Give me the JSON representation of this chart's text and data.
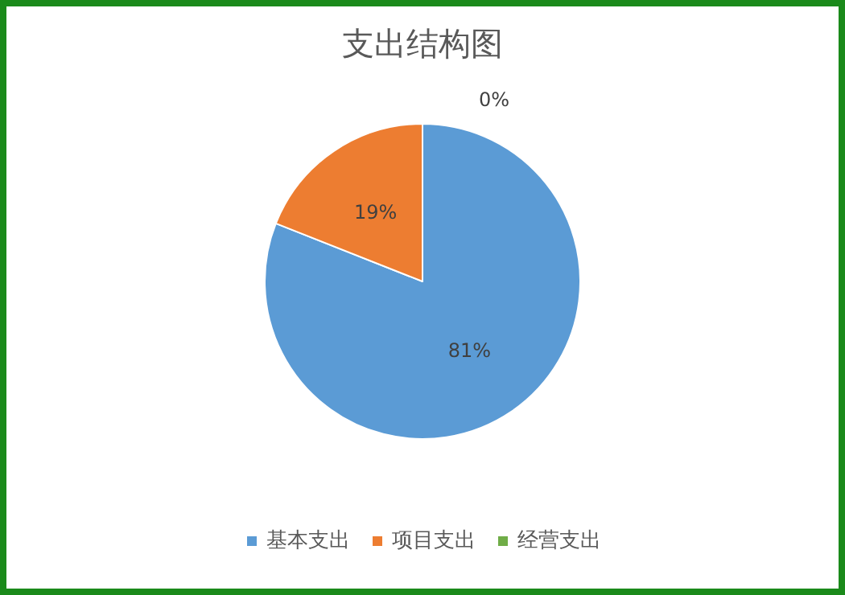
{
  "chart_data": {
    "type": "pie",
    "title": "支出结构图",
    "categories": [
      "基本支出",
      "项目支出",
      "经营支出"
    ],
    "values": [
      81,
      19,
      0
    ],
    "colors": [
      "#5b9bd5",
      "#ed7d31",
      "#70ad47"
    ],
    "value_labels": [
      "81%",
      "19%",
      "0%"
    ],
    "legend": "bottom"
  }
}
